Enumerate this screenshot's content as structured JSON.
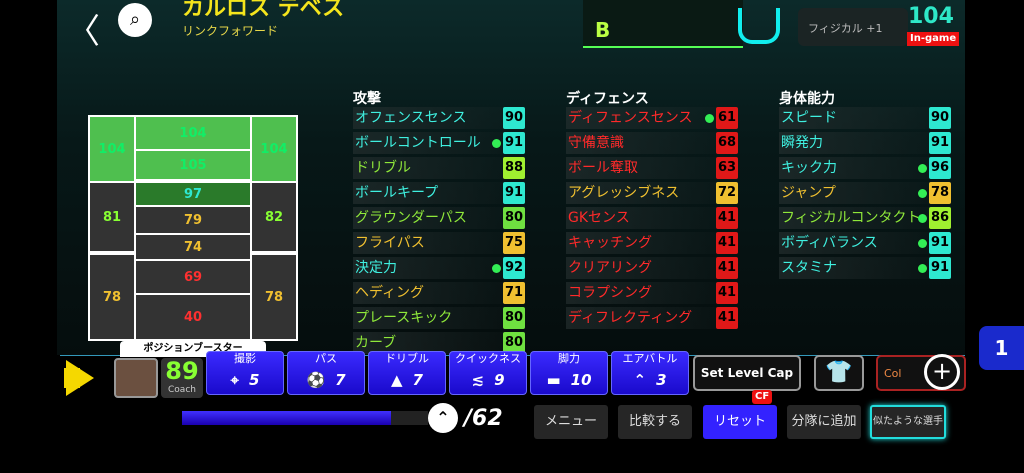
{
  "header": {
    "player_name": "カルロス テベス",
    "subtitle": "リンクフォワード",
    "back_icon": "chevron-left-icon",
    "search_icon": "search-icon",
    "card_grade": "B",
    "physical_bonus": "フィジカル +1",
    "overall": "104",
    "ingame_label": "In-game"
  },
  "field": {
    "zones": [
      "104",
      "104",
      "105",
      "104",
      "97",
      "81",
      "79",
      "82",
      "74",
      "78",
      "69",
      "78",
      "40"
    ]
  },
  "columns": [
    {
      "header": "攻撃",
      "rows": [
        {
          "label": "オフェンスセンス",
          "value": "90",
          "lc": "#3ff0e0",
          "bc": "#2ee8d0",
          "dot": false
        },
        {
          "label": "ボールコントロール",
          "value": "91",
          "lc": "#3ff0e0",
          "bc": "#2ee8d0",
          "dot": true
        },
        {
          "label": "ドリブル",
          "value": "88",
          "lc": "#8fe83a",
          "bc": "#a0f030",
          "dot": false
        },
        {
          "label": "ボールキープ",
          "value": "91",
          "lc": "#3ff0e0",
          "bc": "#2ee8d0",
          "dot": false
        },
        {
          "label": "グラウンダーパス",
          "value": "80",
          "lc": "#8fe83a",
          "bc": "#6fe040",
          "dot": false
        },
        {
          "label": "フライパス",
          "value": "75",
          "lc": "#f0c030",
          "bc": "#f0c030",
          "dot": false
        },
        {
          "label": "決定力",
          "value": "92",
          "lc": "#3ff0e0",
          "bc": "#2ee8d0",
          "dot": true
        },
        {
          "label": "ヘディング",
          "value": "71",
          "lc": "#f0c030",
          "bc": "#f0c030",
          "dot": false
        },
        {
          "label": "プレースキック",
          "value": "80",
          "lc": "#8fe83a",
          "bc": "#6fe040",
          "dot": false
        },
        {
          "label": "カーブ",
          "value": "80",
          "lc": "#8fe83a",
          "bc": "#6fe040",
          "dot": false
        }
      ]
    },
    {
      "header": "ディフェンス",
      "rows": [
        {
          "label": "ディフェンスセンス",
          "value": "61",
          "lc": "#ff2a2a",
          "bc": "#e01818",
          "dot": true
        },
        {
          "label": "守備意識",
          "value": "68",
          "lc": "#ff2a2a",
          "bc": "#e01818",
          "dot": false
        },
        {
          "label": "ボール奪取",
          "value": "63",
          "lc": "#ff2a2a",
          "bc": "#e01818",
          "dot": false
        },
        {
          "label": "アグレッシブネス",
          "value": "72",
          "lc": "#f0c030",
          "bc": "#f0c030",
          "dot": false
        },
        {
          "label": "GKセンス",
          "value": "41",
          "lc": "#ff2a2a",
          "bc": "#e01818",
          "dot": false
        },
        {
          "label": "キャッチング",
          "value": "41",
          "lc": "#ff2a2a",
          "bc": "#e01818",
          "dot": false
        },
        {
          "label": "クリアリング",
          "value": "41",
          "lc": "#ff2a2a",
          "bc": "#e01818",
          "dot": false
        },
        {
          "label": "コラプシング",
          "value": "41",
          "lc": "#ff2a2a",
          "bc": "#e01818",
          "dot": false
        },
        {
          "label": "ディフレクティング",
          "value": "41",
          "lc": "#ff2a2a",
          "bc": "#e01818",
          "dot": false
        }
      ]
    },
    {
      "header": "身体能力",
      "rows": [
        {
          "label": "スピード",
          "value": "90",
          "lc": "#3ff0e0",
          "bc": "#2ee8d0",
          "dot": false
        },
        {
          "label": "瞬発力",
          "value": "91",
          "lc": "#3ff0e0",
          "bc": "#2ee8d0",
          "dot": false
        },
        {
          "label": "キック力",
          "value": "96",
          "lc": "#3ff0e0",
          "bc": "#2ee8d0",
          "dot": true
        },
        {
          "label": "ジャンプ",
          "value": "78",
          "lc": "#f0c030",
          "bc": "#f0c030",
          "dot": true
        },
        {
          "label": "フィジカルコンタクト",
          "value": "86",
          "lc": "#8fe83a",
          "bc": "#a0f030",
          "dot": true
        },
        {
          "label": "ボディバランス",
          "value": "91",
          "lc": "#3ff0e0",
          "bc": "#2ee8d0",
          "dot": true
        },
        {
          "label": "スタミナ",
          "value": "91",
          "lc": "#3ff0e0",
          "bc": "#2ee8d0",
          "dot": true
        }
      ]
    }
  ],
  "booster_label": "ポジションブースター",
  "coach": {
    "value": "89",
    "label": "Coach"
  },
  "skills": [
    {
      "name": "撮影",
      "value": "5",
      "icon": "crosshair-icon",
      "glyph": "⌖"
    },
    {
      "name": "パス",
      "value": "7",
      "icon": "ball-icon",
      "glyph": "⚽"
    },
    {
      "name": "ドリブル",
      "value": "7",
      "icon": "cone-icon",
      "glyph": "▲"
    },
    {
      "name": "クイックネス",
      "value": "9",
      "icon": "agility-icon",
      "glyph": "≲"
    },
    {
      "name": "脚力",
      "value": "10",
      "icon": "boot-icon",
      "glyph": "▬"
    },
    {
      "name": "エアバトル",
      "value": "3",
      "icon": "double-chevron-up-icon",
      "glyph": "⌃"
    }
  ],
  "set_level_cap": "Set Level Cap",
  "kit_icon": "shirt-icon",
  "collab_label": "Col",
  "page_badge": "1",
  "progress": {
    "label": "/62",
    "fraction": 0.85
  },
  "buttons": {
    "menu": "メニュー",
    "compare": "比較する",
    "reset": "リセット",
    "reset_badge": "CF",
    "add_squad": "分隊に追加",
    "similar": "似たような選手"
  }
}
